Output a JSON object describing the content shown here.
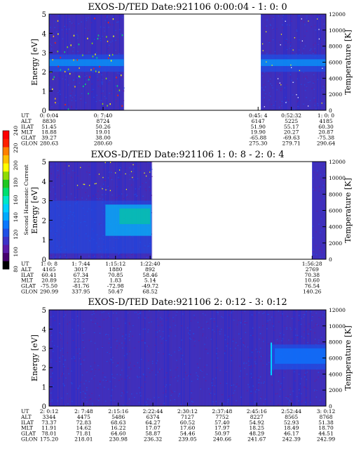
{
  "chart_data": {
    "type": "heatmap",
    "colorbar": {
      "label": "Second Harmonic Current",
      "ticks": [
        "80",
        "100",
        "120",
        "140",
        "160",
        "180",
        "200",
        "220",
        "240"
      ],
      "colors": [
        "#000000",
        "#46006e",
        "#5a1aa8",
        "#3c32c8",
        "#1e50e6",
        "#0a78ff",
        "#00aaff",
        "#00d0ff",
        "#00e8c8",
        "#00e070",
        "#20c820",
        "#90dc00",
        "#ffff00",
        "#ffc000",
        "#ff8000",
        "#ff2000",
        "#ff0000"
      ]
    },
    "panels": [
      {
        "title": "EXOS-D/TED   Date:921106  0:00:04 - 1: 0: 0",
        "ylabel": "Energy [eV]",
        "y2label": "Temperature [K]",
        "ylim": [
          0,
          5
        ],
        "yticks": [
          "0",
          "1",
          "2",
          "3",
          "4",
          "5"
        ],
        "y2lim": [
          0,
          12000
        ],
        "y2ticks": [
          "0",
          "2000",
          "4000",
          "6000",
          "8000",
          "10000",
          "12000"
        ],
        "data_segments": [
          [
            0.0,
            0.27
          ],
          [
            0.765,
            1.0
          ]
        ],
        "table": {
          "labels": [
            "UT",
            "ALT",
            "ILAT",
            "MLT",
            "GLAT",
            "GLON"
          ],
          "columns": [
            {
              "pos": 0.0,
              "values": [
                "0: 0:04",
                "8830",
                "51.45",
                "18.88",
                "39.27",
                "280.63"
              ]
            },
            {
              "pos": 0.195,
              "values": [
                "0: 7:40",
                "8724",
                "50.26",
                "19.01",
                "38.00",
                "280.60"
              ]
            },
            {
              "pos": 0.755,
              "values": [
                "0:45: 4",
                "6147",
                "51.90",
                "19.90",
                "-65.88",
                "275.30"
              ]
            },
            {
              "pos": 0.875,
              "values": [
                "0:52:32",
                "5225",
                "55.17",
                "20.27",
                "-69.63",
                "279.71"
              ]
            },
            {
              "pos": 1.0,
              "values": [
                "1: 0: 0",
                "4185",
                "60.30",
                "20.87",
                "-75.38",
                "290.64"
              ]
            }
          ]
        }
      },
      {
        "title": "EXOS-D/TED   Date:921106  1: 0: 8 - 2: 0: 4",
        "ylabel": "Energy [eV]",
        "y2label": "Temperature [K]",
        "ylim": [
          0,
          5
        ],
        "yticks": [
          "0",
          "1",
          "2",
          "3",
          "4",
          "5"
        ],
        "y2lim": [
          0,
          12000
        ],
        "y2ticks": [
          "0",
          "2000",
          "4000",
          "6000",
          "8000",
          "10000",
          "12000"
        ],
        "data_segments": [
          [
            0.0,
            0.37
          ],
          [
            0.95,
            1.0
          ]
        ],
        "table": {
          "labels": [
            "UT",
            "ALT",
            "ILAT",
            "MLT",
            "GLAT",
            "GLON"
          ],
          "columns": [
            {
              "pos": 0.0,
              "values": [
                "1: 0: 8",
                "4165",
                "60.41",
                "20.89",
                "-75.50",
                "290.99"
              ]
            },
            {
              "pos": 0.115,
              "values": [
                "1: 7:44",
                "3017",
                "67.34",
                "22.27",
                "-81.76",
                "337.95"
              ]
            },
            {
              "pos": 0.24,
              "values": [
                "1:15:12",
                "1880",
                "70.85",
                "1.83",
                "-72.98",
                "50.47"
              ]
            },
            {
              "pos": 0.365,
              "values": [
                "1:22:40",
                "892",
                "58.46",
                "5.14",
                "-49.72",
                "68.52"
              ]
            },
            {
              "pos": 0.95,
              "values": [
                "1:56:28",
                "2769",
                "70.38",
                "10.60",
                "76.54",
                "140.26"
              ]
            }
          ]
        }
      },
      {
        "title": "EXOS-D/TED   Date:921106  2: 0:12 - 3: 0:12",
        "ylabel": "Energy [eV]",
        "y2label": "Temperature [K]",
        "ylim": [
          0,
          5
        ],
        "yticks": [
          "0",
          "1",
          "2",
          "3",
          "4",
          "5"
        ],
        "y2lim": [
          0,
          12000
        ],
        "y2ticks": [
          "0",
          "2000",
          "4000",
          "6000",
          "8000",
          "10000",
          "12000"
        ],
        "data_segments": [
          [
            0.0,
            1.0
          ]
        ],
        "table": {
          "labels": [
            "UT",
            "ALT",
            "ILAT",
            "MLT",
            "GLAT",
            "GLON"
          ],
          "columns": [
            {
              "pos": 0.0,
              "values": [
                "2: 0:12",
                "3344",
                "73.37",
                "11.91",
                "78.01",
                "175.20"
              ]
            },
            {
              "pos": 0.125,
              "values": [
                "2: 7:48",
                "4475",
                "72.83",
                "14.62",
                "71.81",
                "218.01"
              ]
            },
            {
              "pos": 0.25,
              "values": [
                "2:15:16",
                "5486",
                "68.63",
                "16.22",
                "64.60",
                "230.98"
              ]
            },
            {
              "pos": 0.375,
              "values": [
                "2:22:44",
                "6374",
                "64.27",
                "17.07",
                "58.87",
                "236.32"
              ]
            },
            {
              "pos": 0.5,
              "values": [
                "2:30:12",
                "7127",
                "60.52",
                "17.60",
                "54.46",
                "239.05"
              ]
            },
            {
              "pos": 0.625,
              "values": [
                "2:37:48",
                "7752",
                "57.40",
                "17.97",
                "50.97",
                "240.66"
              ]
            },
            {
              "pos": 0.75,
              "values": [
                "2:45:16",
                "8227",
                "54.92",
                "18.25",
                "48.29",
                "241.67"
              ]
            },
            {
              "pos": 0.875,
              "values": [
                "2:52:44",
                "8565",
                "52.93",
                "18.49",
                "46.17",
                "242.39"
              ]
            },
            {
              "pos": 1.0,
              "values": [
                "3: 0:12",
                "8768",
                "51.38",
                "18.70",
                "44.51",
                "242.99"
              ]
            }
          ]
        }
      }
    ]
  }
}
